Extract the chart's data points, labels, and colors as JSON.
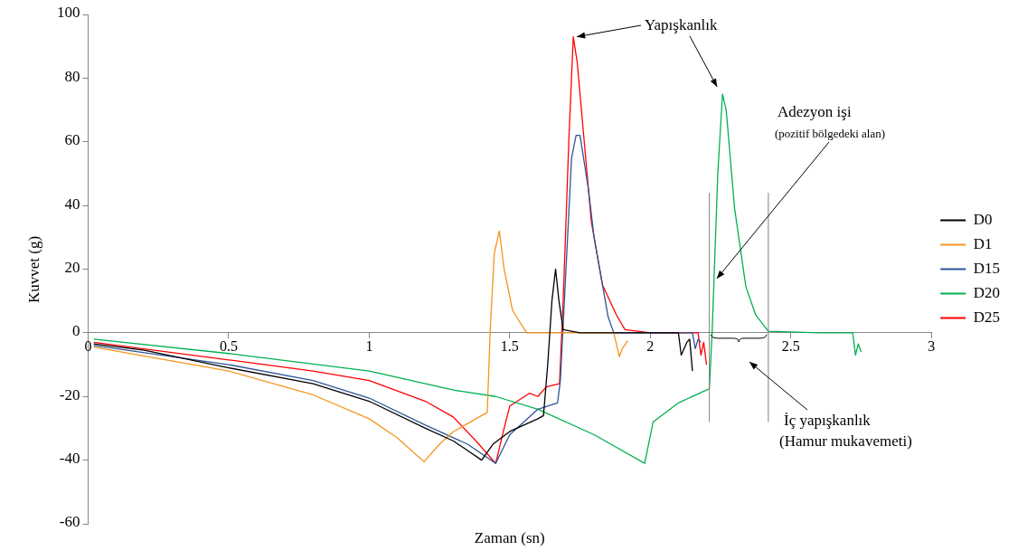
{
  "chart_data": {
    "type": "line",
    "xlabel": "Zaman (sn)",
    "ylabel": "Kuvvet (g)",
    "xlim": [
      0,
      3
    ],
    "xticks": [
      0,
      0.5,
      1,
      1.5,
      2,
      2.5,
      3
    ],
    "ylim": [
      -60,
      100
    ],
    "yticks": [
      -60,
      -40,
      -20,
      0,
      20,
      40,
      60,
      80,
      100
    ],
    "grid": false,
    "legend": "right",
    "marker": "none",
    "line_style": "solid",
    "series": [
      {
        "name": "D0",
        "color": "#000000",
        "x": [
          0.02,
          0.2,
          0.5,
          0.8,
          1,
          1.2,
          1.3,
          1.35,
          1.4,
          1.44,
          1.5,
          1.6,
          1.62,
          1.635,
          1.65,
          1.663,
          1.675,
          1.69,
          1.75,
          2.0,
          2.1,
          2.11,
          2.13,
          2.14,
          2.15
        ],
        "values": [
          -3.5,
          -5.5,
          -11,
          -16,
          -21.5,
          -30,
          -34,
          -37,
          -40,
          -35,
          -31,
          -27,
          -26,
          -10,
          10,
          20,
          10,
          1,
          0,
          0,
          0,
          -7,
          -3,
          -2,
          -12
        ]
      },
      {
        "name": "D1",
        "color": "#f7941d",
        "x": [
          0.02,
          0.5,
          0.8,
          1,
          1.1,
          1.195,
          1.25,
          1.3,
          1.4,
          1.42,
          1.43,
          1.445,
          1.463,
          1.48,
          1.51,
          1.56,
          1.7,
          1.87,
          1.89,
          1.9,
          1.92
        ],
        "values": [
          -4.5,
          -12,
          -19.5,
          -27,
          -33,
          -40.5,
          -35,
          -31,
          -26,
          -25,
          0,
          25,
          32,
          20,
          7,
          0,
          0,
          0,
          -7.5,
          -5,
          -2.5
        ]
      },
      {
        "name": "D15",
        "color": "#2e5597",
        "x": [
          0.02,
          0.5,
          0.8,
          1,
          1.2,
          1.35,
          1.45,
          1.5,
          1.55,
          1.6,
          1.67,
          1.68,
          1.7,
          1.72,
          1.736,
          1.75,
          1.78,
          1.8,
          1.85,
          1.87,
          2.0,
          2.15,
          2.16,
          2.17,
          2.18
        ],
        "values": [
          -4,
          -10,
          -15,
          -20.5,
          -29,
          -35,
          -41,
          -32,
          -28,
          -24,
          -22,
          -15,
          20,
          55,
          62,
          62,
          45,
          30,
          5,
          0,
          0,
          0,
          -5,
          -2,
          -3
        ]
      },
      {
        "name": "D20",
        "color": "#00b050",
        "x": [
          0.02,
          0.5,
          1,
          1.3,
          1.45,
          1.6,
          1.8,
          1.98,
          2.01,
          2.1,
          2.2,
          2.21,
          2.22,
          2.24,
          2.257,
          2.27,
          2.3,
          2.34,
          2.375,
          2.42,
          2.6,
          2.72,
          2.73,
          2.74,
          2.75
        ],
        "values": [
          -2,
          -6.5,
          -12,
          -18,
          -20,
          -24,
          -32,
          -41,
          -28,
          -22,
          -18,
          -17.5,
          0,
          50,
          75,
          70,
          39,
          14.5,
          5.6,
          0.5,
          0,
          0,
          -7,
          -3.5,
          -6
        ]
      },
      {
        "name": "D25",
        "color": "#ff0000",
        "x": [
          0.02,
          0.5,
          0.8,
          1,
          1.2,
          1.3,
          1.38,
          1.45,
          1.48,
          1.5,
          1.57,
          1.6,
          1.63,
          1.677,
          1.69,
          1.71,
          1.726,
          1.74,
          1.79,
          1.83,
          1.88,
          1.91,
          2.0,
          2.17,
          2.18,
          2.19,
          2.2
        ],
        "values": [
          -3,
          -8.5,
          -12,
          -15,
          -21.5,
          -26.5,
          -34,
          -41,
          -30,
          -23,
          -19,
          -20,
          -17,
          -16,
          10,
          60,
          93,
          85,
          35,
          15,
          5.5,
          1,
          0,
          0,
          -7,
          -3,
          -10
        ]
      }
    ],
    "ref_lines": [
      {
        "axis": "x",
        "value": 2.21,
        "color": "#808080"
      },
      {
        "axis": "x",
        "value": 2.42,
        "color": "#808080"
      }
    ],
    "annotations": [
      {
        "text": "Yapışkanlık",
        "x": 1.726,
        "y": 93
      },
      "Adezyon işi",
      {
        "text": "(pozitif bölgedeki alan)",
        "x": 2.227,
        "y": 17
      },
      "İç yapışkanlık",
      "(Hamur mukavemeti)"
    ]
  }
}
